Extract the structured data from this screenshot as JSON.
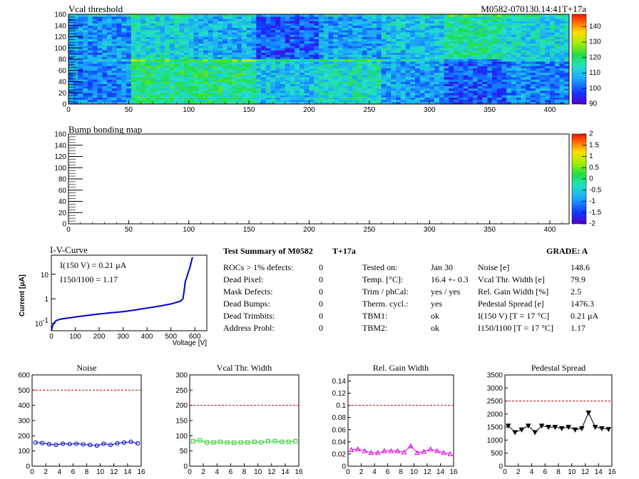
{
  "chart_data": [
    {
      "type": "heatmap",
      "title": "Vcal threshold",
      "module_label": "M0582-070130.14:41T+17a",
      "xlim": [
        0,
        416
      ],
      "ylim": [
        0,
        160
      ],
      "x_ticks": [
        0,
        50,
        100,
        150,
        200,
        250,
        300,
        350,
        400
      ],
      "y_ticks": [
        0,
        20,
        40,
        60,
        80,
        100,
        120,
        140,
        160
      ],
      "z_range": [
        90,
        148
      ],
      "palette_ticks": [
        90,
        100,
        110,
        120,
        130,
        140
      ],
      "rocs_top": [
        105,
        112,
        108,
        100,
        106,
        110,
        116,
        112
      ],
      "rocs_bottom": [
        104,
        118,
        118,
        110,
        114,
        106,
        100,
        104
      ]
    },
    {
      "type": "heatmap",
      "title": "Bump bonding map",
      "xlim": [
        0,
        416
      ],
      "ylim": [
        0,
        160
      ],
      "x_ticks": [
        0,
        50,
        100,
        150,
        200,
        250,
        300,
        350,
        400
      ],
      "y_ticks": [
        0,
        20,
        40,
        60,
        80,
        100,
        120,
        140,
        160
      ],
      "palette_ticks": [
        "-2",
        "-1.5",
        "-1",
        "-0.5",
        "0",
        "0.5",
        "1",
        "1.5",
        "2"
      ]
    },
    {
      "type": "line",
      "title": "I-V-Curve",
      "xlabel": "Voltage [V]",
      "ylabel": "Current [μA]",
      "xlim": [
        0,
        650
      ],
      "ylim": [
        0.05,
        60
      ],
      "log_y": true,
      "x_ticks": [
        0,
        100,
        200,
        300,
        400,
        500,
        600
      ],
      "y_ticks": [
        "10^-1",
        "1",
        "10"
      ],
      "annot1": "I(150 V) = 0.21 μA",
      "annot2": "I150/I100 =  1.17",
      "x": [
        0,
        5,
        10,
        20,
        40,
        60,
        80,
        100,
        150,
        200,
        250,
        300,
        350,
        400,
        450,
        500,
        540,
        550,
        555,
        560,
        570,
        580,
        590
      ],
      "y": [
        0.05,
        0.08,
        0.1,
        0.13,
        0.15,
        0.16,
        0.17,
        0.18,
        0.21,
        0.24,
        0.27,
        0.3,
        0.35,
        0.42,
        0.5,
        0.62,
        0.8,
        1.0,
        2.0,
        5.0,
        10,
        20,
        50
      ]
    },
    {
      "type": "line",
      "title": "Noise",
      "xlim": [
        0,
        16
      ],
      "ylim": [
        0,
        600
      ],
      "x_ticks": [
        0,
        2,
        4,
        6,
        8,
        10,
        12,
        14,
        16
      ],
      "y_ticks": [
        0,
        100,
        200,
        300,
        400,
        500,
        600
      ],
      "limit": 500,
      "color": "#0000cc",
      "x": [
        0,
        1,
        2,
        3,
        4,
        5,
        6,
        7,
        8,
        9,
        10,
        11,
        12,
        13,
        14,
        15
      ],
      "y": [
        155,
        152,
        145,
        140,
        148,
        145,
        148,
        143,
        140,
        135,
        148,
        140,
        150,
        155,
        160,
        150
      ]
    },
    {
      "type": "line",
      "title": "Vcal Thr. Width",
      "xlim": [
        0,
        16
      ],
      "ylim": [
        0,
        300
      ],
      "x_ticks": [
        0,
        2,
        4,
        6,
        8,
        10,
        12,
        14,
        16
      ],
      "y_ticks": [
        0,
        50,
        100,
        150,
        200,
        250,
        300
      ],
      "limit": 200,
      "color": "#33cc33",
      "x": [
        0,
        1,
        2,
        3,
        4,
        5,
        6,
        7,
        8,
        9,
        10,
        11,
        12,
        13,
        14,
        15
      ],
      "y": [
        82,
        85,
        78,
        78,
        80,
        78,
        77,
        78,
        78,
        80,
        78,
        82,
        82,
        80,
        80,
        82
      ]
    },
    {
      "type": "line",
      "title": "Rel. Gain Width",
      "xlim": [
        0,
        16
      ],
      "ylim": [
        0,
        0.15
      ],
      "x_ticks": [
        0,
        2,
        4,
        6,
        8,
        10,
        12,
        14,
        16
      ],
      "y_ticks": [
        0,
        0.02,
        0.04,
        0.06,
        0.08,
        0.1,
        0.12,
        0.14
      ],
      "limit": 0.1,
      "color": "#dd00dd",
      "x": [
        0,
        1,
        2,
        3,
        4,
        5,
        6,
        7,
        8,
        9,
        10,
        11,
        12,
        13,
        14,
        15
      ],
      "y": [
        0.027,
        0.028,
        0.025,
        0.022,
        0.022,
        0.025,
        0.025,
        0.025,
        0.023,
        0.033,
        0.022,
        0.024,
        0.028,
        0.025,
        0.022,
        0.02
      ]
    },
    {
      "type": "line",
      "title": "Pedestal Spread",
      "xlim": [
        0,
        16
      ],
      "ylim": [
        0,
        3500
      ],
      "x_ticks": [
        0,
        2,
        4,
        6,
        8,
        10,
        12,
        14,
        16
      ],
      "y_ticks": [
        0,
        500,
        1000,
        1500,
        2000,
        2500,
        3000,
        3500
      ],
      "limit": 2500,
      "color": "#000000",
      "x": [
        0,
        1,
        2,
        3,
        4,
        5,
        6,
        7,
        8,
        9,
        10,
        11,
        12,
        13,
        14,
        15
      ],
      "y": [
        1550,
        1300,
        1400,
        1550,
        1300,
        1550,
        1500,
        1500,
        1450,
        1500,
        1400,
        1450,
        2050,
        1500,
        1450,
        1420
      ]
    }
  ],
  "summary": {
    "title": "Test Summary of M0582",
    "tag": "T+17a",
    "grade": "GRADE:  A",
    "col1": [
      {
        "label": "ROCs > 1% defects:",
        "value": "0"
      },
      {
        "label": "Dead Pixel:",
        "value": "0"
      },
      {
        "label": "Mask Defects:",
        "value": "0"
      },
      {
        "label": "Dead Bumps:",
        "value": "0"
      },
      {
        "label": "Dead Trimbits:",
        "value": "0"
      },
      {
        "label": "Address Probl:",
        "value": "0"
      }
    ],
    "col2": [
      {
        "label": "Tested on:",
        "value": "Jan 30"
      },
      {
        "label": "Temp. [°C]:",
        "value": "16.4 +- 0.3"
      },
      {
        "label": "Trim / phCal:",
        "value": "yes / yes"
      },
      {
        "label": "Therm. cycl.:",
        "value": "yes"
      },
      {
        "label": "TBM1:",
        "value": "ok"
      },
      {
        "label": "TBM2:",
        "value": "ok"
      }
    ],
    "col3": [
      {
        "label": "Noise [e]",
        "value": "148.6"
      },
      {
        "label": "Vcal Thr. Width [e]",
        "value": "79.9"
      },
      {
        "label": "Rel. Gain Width [%]",
        "value": "2.5"
      },
      {
        "label": "Pedestal Spread [e]",
        "value": "1476.3"
      },
      {
        "label": "I(150 V) [T = 17 °C]",
        "value": "0.21 μA"
      },
      {
        "label": "I150/I100  [T = 17 °C]",
        "value": "1.17"
      }
    ]
  }
}
